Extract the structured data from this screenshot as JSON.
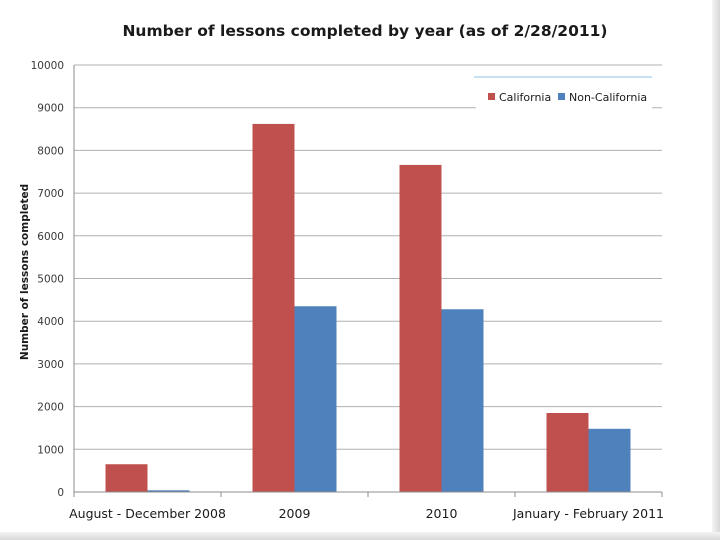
{
  "chart_data": {
    "type": "bar",
    "title": "Number of lessons completed by year (as of 2/28/2011)",
    "xlabel": "",
    "ylabel": "Number of lessons completed",
    "ylim": [
      0,
      10000
    ],
    "yticks": [
      0,
      1000,
      2000,
      3000,
      4000,
      5000,
      6000,
      7000,
      8000,
      9000,
      10000
    ],
    "categories": [
      "August - December 2008",
      "2009",
      "2010",
      "January - February 2011"
    ],
    "series": [
      {
        "name": "California",
        "color": "#c0504d",
        "values": [
          650,
          8620,
          7660,
          1850
        ]
      },
      {
        "name": "Non-California",
        "color": "#4f81bd",
        "values": [
          40,
          4350,
          4280,
          1480
        ]
      }
    ],
    "grid": true,
    "legend_position": "top-right"
  }
}
